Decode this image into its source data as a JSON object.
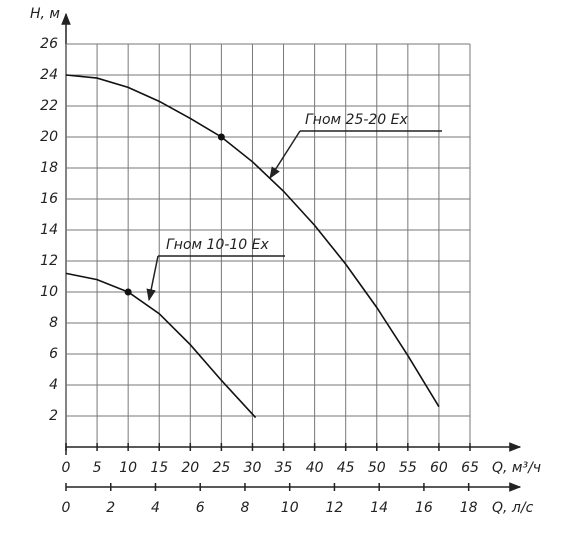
{
  "chart_data": {
    "type": "line",
    "ylabel": "H, м",
    "xlabel": "Q, м³/ч",
    "x2label": "Q, л/с",
    "xlim": [
      0,
      65
    ],
    "xticks": [
      0,
      5,
      10,
      15,
      20,
      25,
      30,
      35,
      40,
      45,
      50,
      55,
      60,
      65
    ],
    "x2lim": [
      0,
      18.06
    ],
    "x2ticks": [
      0,
      2,
      4,
      6,
      8,
      10,
      12,
      14,
      16,
      18
    ],
    "ylim": [
      0,
      26
    ],
    "yticks": [
      2,
      4,
      6,
      8,
      10,
      12,
      14,
      16,
      18,
      20,
      22,
      24,
      26
    ],
    "grid": true,
    "series": [
      {
        "name": "Гном 25-20 Ex",
        "color": "#111111",
        "marked_index": 5,
        "x": [
          0,
          5,
          10,
          15,
          20,
          25,
          30,
          35,
          40,
          45,
          50,
          55,
          60
        ],
        "values": [
          24,
          23.8,
          23.2,
          22.3,
          21.2,
          20,
          18.4,
          16.5,
          14.3,
          11.8,
          9.0,
          5.9,
          2.6
        ]
      },
      {
        "name": "Гном 10-10 Ex",
        "color": "#111111",
        "marked_index": 2,
        "x": [
          0,
          5,
          10,
          15,
          20,
          25,
          30.5
        ],
        "values": [
          11.2,
          10.8,
          10,
          8.6,
          6.6,
          4.3,
          1.9
        ]
      }
    ]
  }
}
